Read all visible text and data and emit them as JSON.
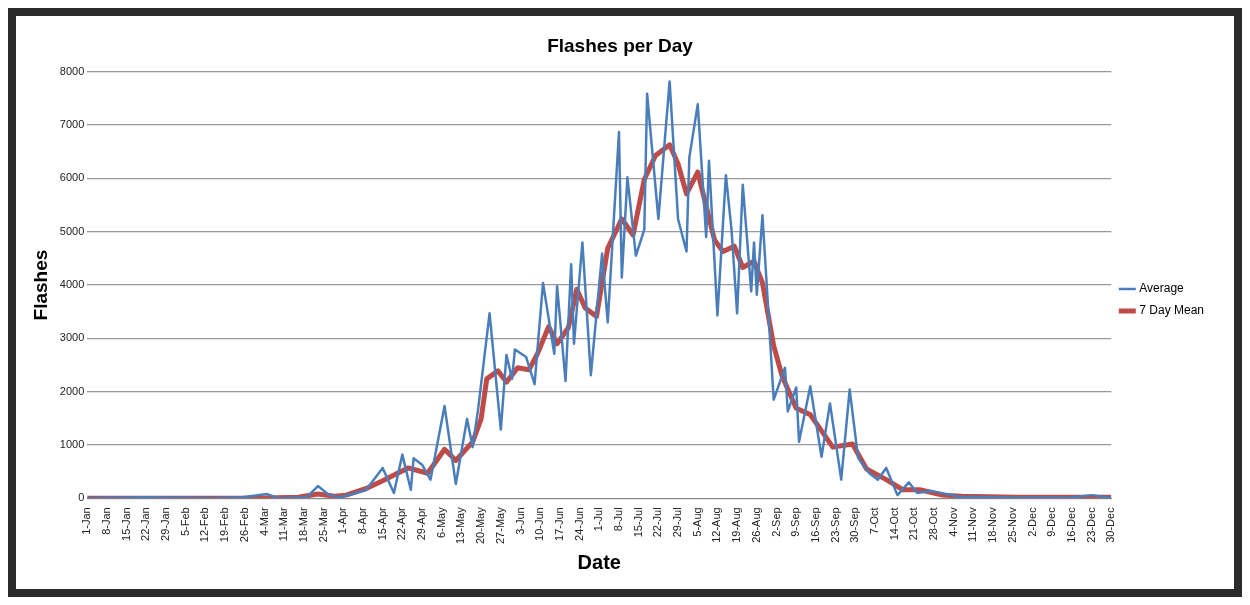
{
  "chart_data": {
    "type": "line",
    "title": "Flashes per Day",
    "xlabel": "Date",
    "ylabel": "Flashes",
    "xlim": [
      "--01-01",
      "--12-30"
    ],
    "xticks": [
      {
        "value": "--01-01",
        "label": "1-Jan"
      },
      {
        "value": "--01-08",
        "label": "8-Jan"
      },
      {
        "value": "--01-15",
        "label": "15-Jan"
      },
      {
        "value": "--01-22",
        "label": "22-Jan"
      },
      {
        "value": "--01-29",
        "label": "29-Jan"
      },
      {
        "value": "--02-05",
        "label": "5-Feb"
      },
      {
        "value": "--02-12",
        "label": "12-Feb"
      },
      {
        "value": "--02-19",
        "label": "19-Feb"
      },
      {
        "value": "--02-26",
        "label": "26-Feb"
      },
      {
        "value": "--03-04",
        "label": "4-Mar"
      },
      {
        "value": "--03-11",
        "label": "11-Mar"
      },
      {
        "value": "--03-18",
        "label": "18-Mar"
      },
      {
        "value": "--03-25",
        "label": "25-Mar"
      },
      {
        "value": "--04-01",
        "label": "1-Apr"
      },
      {
        "value": "--04-08",
        "label": "8-Apr"
      },
      {
        "value": "--04-15",
        "label": "15-Apr"
      },
      {
        "value": "--04-22",
        "label": "22-Apr"
      },
      {
        "value": "--04-29",
        "label": "29-Apr"
      },
      {
        "value": "--05-06",
        "label": "6-May"
      },
      {
        "value": "--05-13",
        "label": "13-May"
      },
      {
        "value": "--05-20",
        "label": "20-May"
      },
      {
        "value": "--05-27",
        "label": "27-May"
      },
      {
        "value": "--06-03",
        "label": "3-Jun"
      },
      {
        "value": "--06-10",
        "label": "10-Jun"
      },
      {
        "value": "--06-17",
        "label": "17-Jun"
      },
      {
        "value": "--06-24",
        "label": "24-Jun"
      },
      {
        "value": "--07-01",
        "label": "1-Jul"
      },
      {
        "value": "--07-08",
        "label": "8-Jul"
      },
      {
        "value": "--07-15",
        "label": "15-Jul"
      },
      {
        "value": "--07-22",
        "label": "22-Jul"
      },
      {
        "value": "--07-29",
        "label": "29-Jul"
      },
      {
        "value": "--08-05",
        "label": "5-Aug"
      },
      {
        "value": "--08-12",
        "label": "12-Aug"
      },
      {
        "value": "--08-19",
        "label": "19-Aug"
      },
      {
        "value": "--08-26",
        "label": "26-Aug"
      },
      {
        "value": "--09-02",
        "label": "2-Sep"
      },
      {
        "value": "--09-09",
        "label": "9-Sep"
      },
      {
        "value": "--09-16",
        "label": "16-Sep"
      },
      {
        "value": "--09-23",
        "label": "23-Sep"
      },
      {
        "value": "--09-30",
        "label": "30-Sep"
      },
      {
        "value": "--10-07",
        "label": "7-Oct"
      },
      {
        "value": "--10-14",
        "label": "14-Oct"
      },
      {
        "value": "--10-21",
        "label": "21-Oct"
      },
      {
        "value": "--10-28",
        "label": "28-Oct"
      },
      {
        "value": "--11-04",
        "label": "4-Nov"
      },
      {
        "value": "--11-11",
        "label": "11-Nov"
      },
      {
        "value": "--11-18",
        "label": "18-Nov"
      },
      {
        "value": "--11-25",
        "label": "25-Nov"
      },
      {
        "value": "--12-02",
        "label": "2-Dec"
      },
      {
        "value": "--12-09",
        "label": "9-Dec"
      },
      {
        "value": "--12-16",
        "label": "16-Dec"
      },
      {
        "value": "--12-23",
        "label": "23-Dec"
      },
      {
        "value": "--12-30",
        "label": "30-Dec"
      }
    ],
    "ylim": [
      0,
      8000
    ],
    "yticks": [
      0,
      1000,
      2000,
      3000,
      4000,
      5000,
      6000,
      7000,
      8000
    ],
    "grid": "y",
    "legend": "right",
    "marker": "none",
    "series": [
      {
        "name": "Average",
        "color": "#4a7ebb",
        "x": [
          "--01-01",
          "--01-21",
          "--02-15",
          "--02-25",
          "--03-05",
          "--03-09",
          "--03-19",
          "--03-23",
          "--03-27",
          "--03-31",
          "--04-09",
          "--04-15",
          "--04-19",
          "--04-22",
          "--04-25",
          "--04-26",
          "--04-29",
          "--05-02",
          "--05-07",
          "--05-11",
          "--05-15",
          "--05-17",
          "--05-19",
          "--05-23",
          "--05-27",
          "--05-29",
          "--05-31",
          "--06-01",
          "--06-05",
          "--06-08",
          "--06-11",
          "--06-15",
          "--06-16",
          "--06-19",
          "--06-21",
          "--06-22",
          "--06-25",
          "--06-28",
          "--07-02",
          "--07-04",
          "--07-08",
          "--07-09",
          "--07-11",
          "--07-14",
          "--07-17",
          "--07-18",
          "--07-22",
          "--07-26",
          "--07-29",
          "--08-01",
          "--08-02",
          "--08-05",
          "--08-08",
          "--08-09",
          "--08-12",
          "--08-15",
          "--08-17",
          "--08-19",
          "--08-21",
          "--08-24",
          "--08-25",
          "--08-26",
          "--08-28",
          "--09-01",
          "--09-05",
          "--09-06",
          "--09-09",
          "--09-10",
          "--09-14",
          "--09-18",
          "--09-21",
          "--09-25",
          "--09-28",
          "--10-01",
          "--10-05",
          "--10-08",
          "--10-11",
          "--10-15",
          "--10-19",
          "--10-22",
          "--10-27",
          "--11-06",
          "--11-26",
          "--12-16",
          "--12-23",
          "--12-30"
        ],
        "values": [
          0,
          20,
          0,
          20,
          80,
          0,
          20,
          230,
          60,
          20,
          150,
          570,
          100,
          820,
          160,
          750,
          630,
          350,
          1730,
          270,
          1490,
          960,
          1700,
          3470,
          1290,
          2690,
          2240,
          2790,
          2650,
          2140,
          4040,
          2710,
          3980,
          2200,
          4390,
          2900,
          4800,
          2310,
          4590,
          3300,
          6870,
          4140,
          6020,
          4550,
          5040,
          7590,
          5240,
          7820,
          5240,
          4630,
          6390,
          7390,
          4900,
          6330,
          3430,
          6060,
          5040,
          3470,
          5880,
          3880,
          4800,
          3820,
          5310,
          1850,
          2450,
          1630,
          2080,
          1060,
          2100,
          780,
          1780,
          350,
          2040,
          760,
          470,
          350,
          570,
          60,
          300,
          100,
          140,
          30,
          15,
          20,
          60,
          10
        ]
      },
      {
        "name": "7 Day Mean",
        "color": "#be4b48",
        "x": [
          "--01-01",
          "--03-01",
          "--03-16",
          "--03-23",
          "--03-29",
          "--04-02",
          "--04-09",
          "--04-15",
          "--04-24",
          "--05-01",
          "--05-07",
          "--05-11",
          "--05-17",
          "--05-20",
          "--05-22",
          "--05-26",
          "--05-29",
          "--06-02",
          "--06-06",
          "--06-09",
          "--06-13",
          "--06-16",
          "--06-20",
          "--06-23",
          "--06-26",
          "--06-30",
          "--07-04",
          "--07-09",
          "--07-13",
          "--07-17",
          "--07-21",
          "--07-26",
          "--07-29",
          "--08-01",
          "--08-05",
          "--08-11",
          "--08-14",
          "--08-18",
          "--08-21",
          "--08-25",
          "--08-28",
          "--09-01",
          "--09-04",
          "--09-09",
          "--09-14",
          "--09-22",
          "--09-29",
          "--10-04",
          "--10-11",
          "--10-17",
          "--10-23",
          "--10-31",
          "--11-07",
          "--11-26",
          "--12-30"
        ],
        "values": [
          0,
          0,
          20,
          80,
          40,
          60,
          180,
          330,
          570,
          470,
          920,
          710,
          1060,
          1490,
          2240,
          2390,
          2180,
          2450,
          2410,
          2710,
          3220,
          2900,
          3200,
          3920,
          3570,
          3410,
          4690,
          5240,
          4940,
          5980,
          6430,
          6630,
          6270,
          5710,
          6120,
          4840,
          4630,
          4730,
          4330,
          4450,
          4040,
          2860,
          2290,
          1690,
          1570,
          960,
          1020,
          550,
          350,
          160,
          160,
          60,
          40,
          20,
          20
        ]
      }
    ]
  }
}
